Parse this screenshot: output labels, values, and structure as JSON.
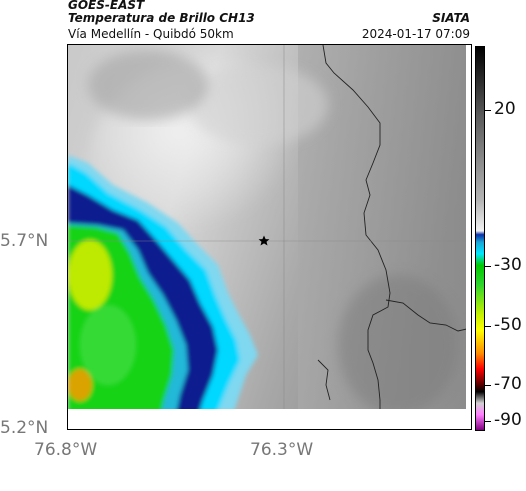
{
  "header": {
    "satellite": "GOES-EAST",
    "product": "Temperatura de Brillo CH13",
    "agency": "SIATA",
    "subtitle": "Vía Medellín - Quibdó 50km",
    "timestamp": "2024-01-17 07:09"
  },
  "axes": {
    "lat_ticks": [
      "5.7°N",
      "5.2°N"
    ],
    "lon_ticks": [
      "76.8°W",
      "76.3°W"
    ]
  },
  "colorbar": {
    "ticks": [
      "20",
      "-30",
      "-50",
      "-70",
      "-90"
    ],
    "stops": [
      "#000000",
      "#5a5a5a",
      "#b4b4b4",
      "#f2f2f2",
      "#0a2ea8",
      "#1aa6d6",
      "#00e5ff",
      "#00c800",
      "#2dd52d",
      "#c8f000",
      "#ffff00",
      "#ff8c00",
      "#ff0000",
      "#600000",
      "#000000",
      "#d0d0d0",
      "#ff7fff",
      "#800080"
    ],
    "colors": {
      "cloud_deep_blue": "#0a1f8f",
      "cloud_cyan": "#00e5ff",
      "cloud_green": "#12d312",
      "cloud_yellow": "#e8f000",
      "warm_gray": "#9a9a9a",
      "border_line": "#222222"
    }
  },
  "map": {
    "marker_icon": "star-icon",
    "crosshair_lat": "5.7°N",
    "crosshair_lon": "76.3°W"
  }
}
